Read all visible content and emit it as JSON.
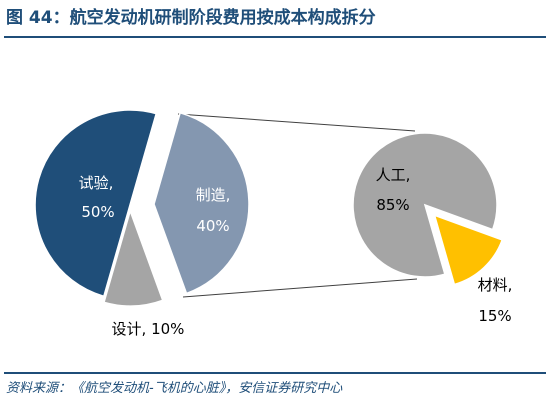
{
  "figure": {
    "title": "图 44：航空发动机研制阶段费用按成本构成拆分",
    "source": "资料来源：《航空发动机-飞机的心脏》，安信证券研究中心"
  },
  "colors": {
    "shiyan": "#1f4e79",
    "zhizao": "#8497b0",
    "sheji": "#a5a5a5",
    "rengong": "#a5a5a5",
    "cailiao": "#ffc000",
    "title": "#1f4e79"
  },
  "chart_data": [
    {
      "type": "pie",
      "title": "",
      "slices": [
        {
          "name": "试验",
          "value": 50,
          "label_line1": "试验,",
          "label_line2": "50%"
        },
        {
          "name": "制造",
          "value": 40,
          "label_line1": "制造,",
          "label_line2": "40%"
        },
        {
          "name": "设计",
          "value": 10,
          "label_line1": "设计, 10%",
          "label_line2": ""
        }
      ],
      "exploded": true
    },
    {
      "type": "pie",
      "title": "",
      "breakdown_of": "制造",
      "slices": [
        {
          "name": "人工",
          "value": 85,
          "label_line1": "人工,",
          "label_line2": "85%"
        },
        {
          "name": "材料",
          "value": 15,
          "label_line1": "材料,",
          "label_line2": "15%"
        }
      ],
      "exploded": true
    }
  ]
}
